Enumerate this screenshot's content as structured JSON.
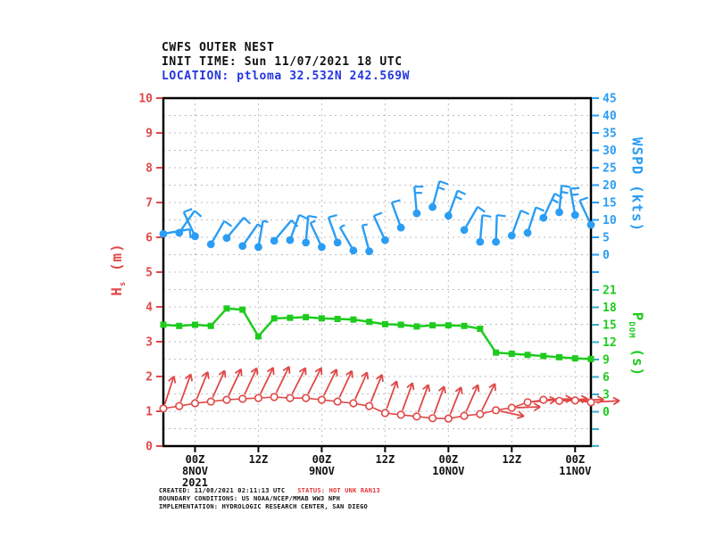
{
  "header": {
    "line1": "CWFS OUTER NEST",
    "line2": "INIT TIME: Sun 11/07/2021 18 UTC",
    "line3": "LOCATION: ptloma 32.532N 242.569W"
  },
  "labels": {
    "hs_main": "H",
    "hs_sub": "s",
    "hs_rest": " (m)",
    "wspd": "WSPD (kts)",
    "pdom_main": "P",
    "pdom_sub": "DOM",
    "pdom_rest": " (s)"
  },
  "chart_data": {
    "type": "line",
    "title": "CWFS OUTER NEST",
    "init_time": "Sun 11/07/2021 18 UTC",
    "location": "ptloma 32.532N 242.569W",
    "grid": {
      "horizontal_every_hs_m": 0.5,
      "vertical_every_hours": 12,
      "style": "dashed-gray"
    },
    "x": {
      "unit": "hours relative to 00Z 8 NOV 2021",
      "domain": [
        -6,
        75
      ],
      "ticks": [
        0,
        12,
        24,
        36,
        48,
        60,
        72
      ],
      "tick_labels": [
        [
          "00Z",
          "8NOV",
          "2021"
        ],
        [
          "12Z"
        ],
        [
          "00Z",
          "9NOV"
        ],
        [
          "12Z"
        ],
        [
          "00Z",
          "10NOV"
        ],
        [
          "12Z"
        ],
        [
          "00Z",
          "11NOV"
        ]
      ]
    },
    "y_left": {
      "label": "Hs (m)",
      "range": [
        0,
        10
      ],
      "ticks": [
        0,
        1,
        2,
        3,
        4,
        5,
        6,
        7,
        8,
        9,
        10
      ],
      "color": "#e04848"
    },
    "y_right_top": {
      "label": "WSPD (kts)",
      "range": [
        0,
        45
      ],
      "ticks": [
        45,
        40,
        35,
        30,
        25,
        20,
        15,
        10,
        5,
        0
      ],
      "color": "#2a9df4"
    },
    "y_right_bottom": {
      "label": "PDOM (s)",
      "range": [
        0,
        21
      ],
      "ticks": [
        21,
        18,
        15,
        12,
        9,
        6,
        3,
        0
      ],
      "color": "#1ecb1e",
      "tick_mark_color": "#3aabc8"
    },
    "hours": [
      -6,
      -3,
      0,
      3,
      6,
      9,
      12,
      15,
      18,
      21,
      24,
      27,
      30,
      33,
      36,
      39,
      42,
      45,
      48,
      51,
      54,
      57,
      60,
      63,
      66,
      69,
      72,
      75
    ],
    "series": [
      {
        "name": "WSPD",
        "units": "kts",
        "axis": "y_right_top",
        "style": "wind_barbs",
        "color": "#2a9df4",
        "values": [
          6,
          6.3,
          5.3,
          3,
          4.8,
          2.5,
          2.2,
          4,
          4.2,
          3.5,
          2.2,
          3.5,
          1.2,
          1,
          4.2,
          7.8,
          11.9,
          13.7,
          11.2,
          7.1,
          3.7,
          3.7,
          5.5,
          6.3,
          10.6,
          12.2,
          11.4,
          8.6
        ],
        "barb_angles_deg": [
          10,
          55,
          115,
          60,
          50,
          55,
          80,
          50,
          70,
          85,
          115,
          110,
          120,
          105,
          115,
          110,
          95,
          75,
          70,
          60,
          85,
          88,
          70,
          72,
          65,
          85,
          100,
          115
        ]
      },
      {
        "name": "PDOM",
        "units": "s",
        "axis": "y_right_bottom",
        "style": "line_squares",
        "color": "#1ecb1e",
        "values": [
          15,
          14.8,
          15,
          14.8,
          17.8,
          17.6,
          13,
          16.1,
          16.2,
          16.3,
          16.1,
          16,
          15.9,
          15.5,
          15.1,
          15,
          14.7,
          14.9,
          14.9,
          14.8,
          14.3,
          10.2,
          10,
          9.8,
          9.6,
          9.4,
          9.2,
          9.1
        ]
      },
      {
        "name": "Hs",
        "units": "m",
        "axis": "y_left",
        "style": "line_circles_arrows",
        "color": "#e04848",
        "values": [
          1.08,
          1.15,
          1.23,
          1.28,
          1.33,
          1.36,
          1.38,
          1.41,
          1.38,
          1.38,
          1.33,
          1.28,
          1.23,
          1.15,
          0.95,
          0.9,
          0.85,
          0.8,
          0.79,
          0.87,
          0.92,
          1.03,
          1.1,
          1.26,
          1.33,
          1.3,
          1.31,
          1.26
        ],
        "arrow_angles_deg": [
          72,
          70,
          68,
          66,
          65,
          65,
          64,
          64,
          63,
          63,
          64,
          65,
          66,
          68,
          70,
          70,
          70,
          70,
          68,
          66,
          64,
          -12,
          2,
          5,
          2,
          4,
          2,
          3
        ]
      }
    ]
  },
  "footer": {
    "created": "CREATED: 11/08/2021 02:11:13 UTC",
    "status": "STATUS: HOT UNK RAN13",
    "line2": "BOUNDARY CONDITIONS: US NOAA/NCEP/MMAB WW3 NPH",
    "line3": "IMPLEMENTATION: HYDROLOGIC RESEARCH CENTER, SAN DIEGO"
  }
}
